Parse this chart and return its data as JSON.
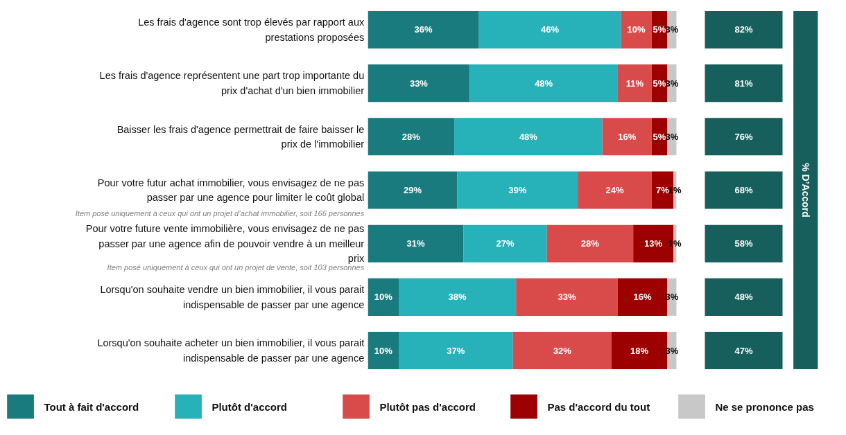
{
  "chart_data": [
    {
      "type": "bar",
      "orientation": "horizontal",
      "stacked": true,
      "grid": false,
      "legend": "bottom",
      "tick_labels": false,
      "categories": [
        "Les frais d'agence sont trop élevés par rapport aux prestations proposées",
        "Les frais d'agence représentent une part trop importante du prix d'achat d'un bien immobilier",
        "Baisser les frais d'agence permettrait de faire baisser le prix de l'immobilier",
        "Pour votre futur achat immobilier, vous envisagez de ne pas passer par une agence pour limiter le coût global",
        "Pour votre future vente immobilière, vous envisagez de ne pas passer par une agence afin de pouvoir vendre à un meilleur prix",
        "Lorsqu'on souhaite vendre un bien immobilier, il vous parait indispensable de passer par une agence",
        "Lorsqu'on souhaite acheter un bien immobilier, il vous parait indispensable de passer par une agence"
      ],
      "series": [
        {
          "name": "Tout à fait d'accord",
          "color": "#1a7b7f",
          "values": [
            36,
            33,
            28,
            29,
            31,
            10,
            10
          ],
          "value_labels": [
            "36%",
            "33%",
            "28%",
            "29%",
            "31%",
            "10%",
            "10%"
          ]
        },
        {
          "name": "Plutôt d'accord",
          "color": "#27b1b9",
          "values": [
            46,
            48,
            48,
            39,
            27,
            38,
            37
          ],
          "value_labels": [
            "46%",
            "48%",
            "48%",
            "39%",
            "27%",
            "38%",
            "37%"
          ]
        },
        {
          "name": "Plutôt pas d'accord",
          "color": "#d94b4b",
          "values": [
            10,
            11,
            16,
            24,
            28,
            33,
            32
          ],
          "value_labels": [
            "10%",
            "11%",
            "16%",
            "24%",
            "28%",
            "33%",
            "32%"
          ]
        },
        {
          "name": "Pas d'accord du tout",
          "color": "#9c0000",
          "values": [
            5,
            5,
            5,
            7,
            13,
            16,
            18
          ],
          "value_labels": [
            "5%",
            "5%",
            "5%",
            "7%",
            "13%",
            "16%",
            "18%"
          ]
        },
        {
          "name": "Ne se prononce pas",
          "color": "#c8c8c8",
          "values": [
            3,
            3,
            3,
            1,
            1,
            3,
            3
          ],
          "value_labels": [
            "3%",
            "3%",
            "3%",
            "1%",
            "1%",
            "3%",
            "3%"
          ]
        }
      ],
      "annotations": [
        "Item posé uniquement à ceux qui ont un projet d’achat immobilier, soit 166 personnes",
        "Item posé uniquement à ceux qui ont un projet de vente, soit 103 personnes"
      ]
    },
    {
      "type": "other",
      "title": "% D’Accord",
      "annotations": [
        "82%",
        "81%",
        "76%",
        "68%",
        "58%",
        "48%",
        "47%"
      ]
    }
  ]
}
